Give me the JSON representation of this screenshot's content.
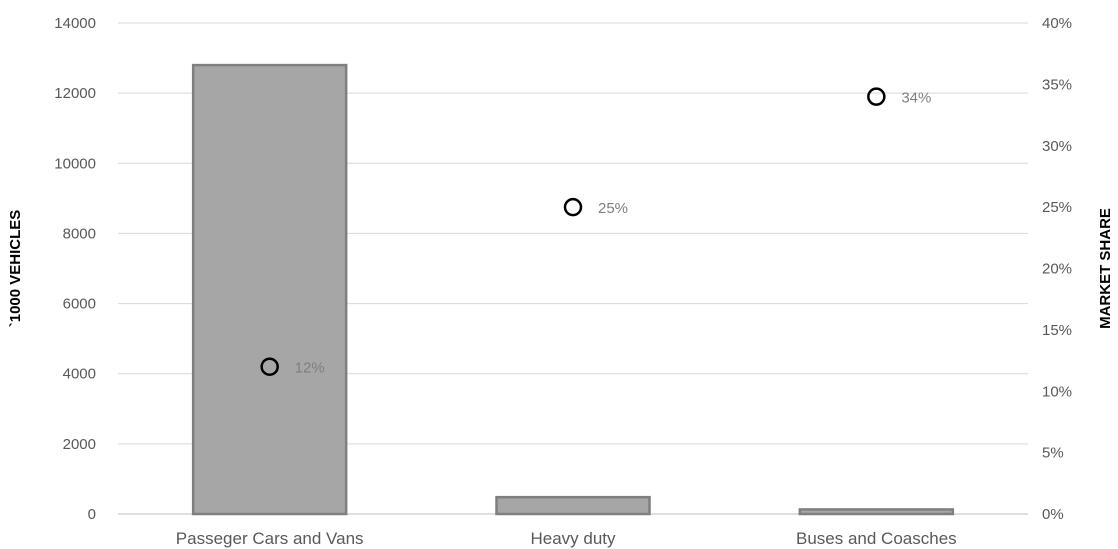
{
  "chart_data": {
    "type": "bar",
    "categories": [
      "Passeger Cars and Vans",
      "Heavy duty",
      "Buses and Coasches"
    ],
    "series": [
      {
        "name": "",
        "type": "bar",
        "axis": "left",
        "values": [
          12800,
          480,
          130
        ]
      },
      {
        "name": "",
        "type": "scatter",
        "axis": "right",
        "values": [
          0.12,
          0.25,
          0.34
        ],
        "labels": [
          "12%",
          "25%",
          "34%"
        ]
      }
    ],
    "ylabel": "`1000 VEHICLES",
    "y2label": "MARKET SHARE",
    "ylim": [
      0,
      14000
    ],
    "y2lim": [
      0,
      0.4
    ],
    "yticks": [
      "0",
      "2000",
      "4000",
      "6000",
      "8000",
      "10000",
      "12000",
      "14000"
    ],
    "y2ticks": [
      "0%",
      "5%",
      "10%",
      "15%",
      "20%",
      "25%",
      "30%",
      "35%",
      "40%"
    ],
    "grid": true,
    "legend": "none",
    "colors": {
      "bar": "#a6a6a6",
      "bar_edge": "#7f7f7f",
      "marker_stroke": "#000000",
      "grid": "#d9d9d9",
      "axis_text": "#595959",
      "label_text": "#7f7f7f"
    }
  }
}
